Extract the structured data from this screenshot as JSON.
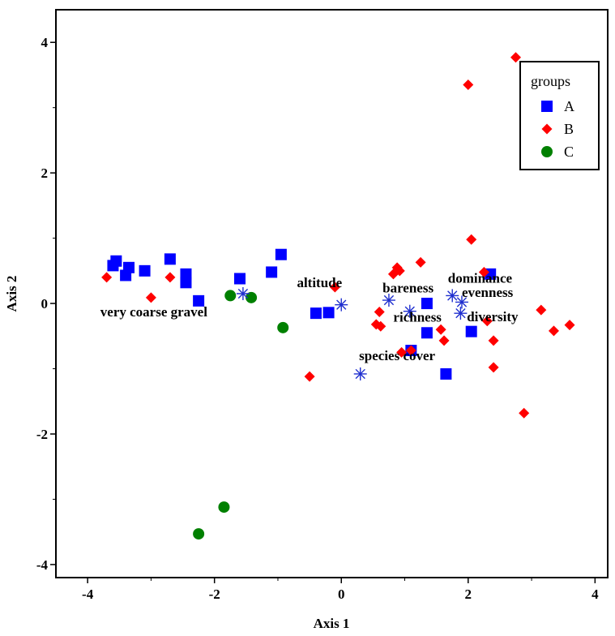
{
  "chart_data": {
    "type": "scatter",
    "title": "",
    "xlabel": "Axis 1",
    "ylabel": "Axis 2",
    "xlim": [
      -4.5,
      4.2
    ],
    "ylim": [
      -4.2,
      4.5
    ],
    "xticks": [
      -4,
      -2,
      0,
      2,
      4
    ],
    "xtick_labels": [
      "-4",
      "-2",
      "0",
      "2",
      "4"
    ],
    "yticks": [
      -4,
      -2,
      0,
      2,
      4
    ],
    "ytick_labels": [
      "-4",
      "-2",
      "0",
      "2",
      "4"
    ],
    "legend": {
      "title": "groups",
      "position": "top-right",
      "entries": [
        "A",
        "B",
        "C"
      ]
    },
    "series": [
      {
        "name": "A",
        "marker": "square",
        "color": "#0000ff",
        "points": [
          [
            -3.6,
            0.58
          ],
          [
            -3.55,
            0.65
          ],
          [
            -3.35,
            0.55
          ],
          [
            -3.4,
            0.43
          ],
          [
            -3.1,
            0.5
          ],
          [
            -2.7,
            0.68
          ],
          [
            -2.45,
            0.45
          ],
          [
            -2.45,
            0.32
          ],
          [
            -2.25,
            0.04
          ],
          [
            -1.6,
            0.38
          ],
          [
            -1.1,
            0.48
          ],
          [
            -0.95,
            0.75
          ],
          [
            -0.4,
            -0.15
          ],
          [
            -0.2,
            -0.14
          ],
          [
            1.1,
            -0.72
          ],
          [
            1.35,
            -0.45
          ],
          [
            1.35,
            0.0
          ],
          [
            1.65,
            -1.08
          ],
          [
            2.05,
            -0.43
          ],
          [
            2.35,
            0.45
          ]
        ]
      },
      {
        "name": "B",
        "marker": "diamond",
        "color": "#ff0000",
        "points": [
          [
            -3.7,
            0.4
          ],
          [
            -3.0,
            0.09
          ],
          [
            -2.7,
            0.4
          ],
          [
            -0.5,
            -1.12
          ],
          [
            -0.1,
            0.25
          ],
          [
            0.55,
            -0.32
          ],
          [
            0.6,
            -0.13
          ],
          [
            0.62,
            -0.35
          ],
          [
            0.82,
            0.45
          ],
          [
            0.88,
            0.55
          ],
          [
            0.92,
            0.5
          ],
          [
            0.95,
            -0.75
          ],
          [
            1.1,
            -0.72
          ],
          [
            1.25,
            0.63
          ],
          [
            1.57,
            -0.4
          ],
          [
            1.62,
            -0.57
          ],
          [
            2.0,
            3.35
          ],
          [
            2.05,
            0.98
          ],
          [
            2.25,
            0.48
          ],
          [
            2.3,
            -0.27
          ],
          [
            2.4,
            -0.57
          ],
          [
            2.4,
            -0.98
          ],
          [
            2.75,
            3.77
          ],
          [
            2.88,
            -1.68
          ],
          [
            3.15,
            -0.1
          ],
          [
            3.35,
            -0.42
          ],
          [
            3.6,
            -0.33
          ]
        ]
      },
      {
        "name": "C",
        "marker": "circle",
        "color": "#008000",
        "points": [
          [
            -1.75,
            0.12
          ],
          [
            -1.42,
            0.09
          ],
          [
            -0.92,
            -0.37
          ],
          [
            -1.85,
            -3.12
          ],
          [
            -2.25,
            -3.53
          ]
        ]
      }
    ],
    "vectors": [
      {
        "label": "very coarse gravel",
        "point": [
          -1.55,
          0.15
        ],
        "label_pos": [
          -3.8,
          -0.2
        ]
      },
      {
        "label": "altitude",
        "point": [
          0.0,
          -0.02
        ],
        "label_pos": [
          -0.7,
          0.25
        ]
      },
      {
        "label": "bareness",
        "point": [
          0.75,
          0.05
        ],
        "label_pos": [
          0.65,
          0.17
        ]
      },
      {
        "label": "richness",
        "point": [
          1.08,
          -0.12
        ],
        "label_pos": [
          0.82,
          -0.28
        ]
      },
      {
        "label": "species cover",
        "point": [
          0.3,
          -1.08
        ],
        "label_pos": [
          0.28,
          -0.87
        ]
      },
      {
        "label": "dominance",
        "point": [
          1.75,
          0.12
        ],
        "label_pos": [
          1.68,
          0.32
        ]
      },
      {
        "label": "evenness",
        "point": [
          1.9,
          0.02
        ],
        "label_pos": [
          1.9,
          0.1
        ]
      },
      {
        "label": "diversity",
        "point": [
          1.88,
          -0.15
        ],
        "label_pos": [
          1.98,
          -0.27
        ]
      }
    ]
  }
}
